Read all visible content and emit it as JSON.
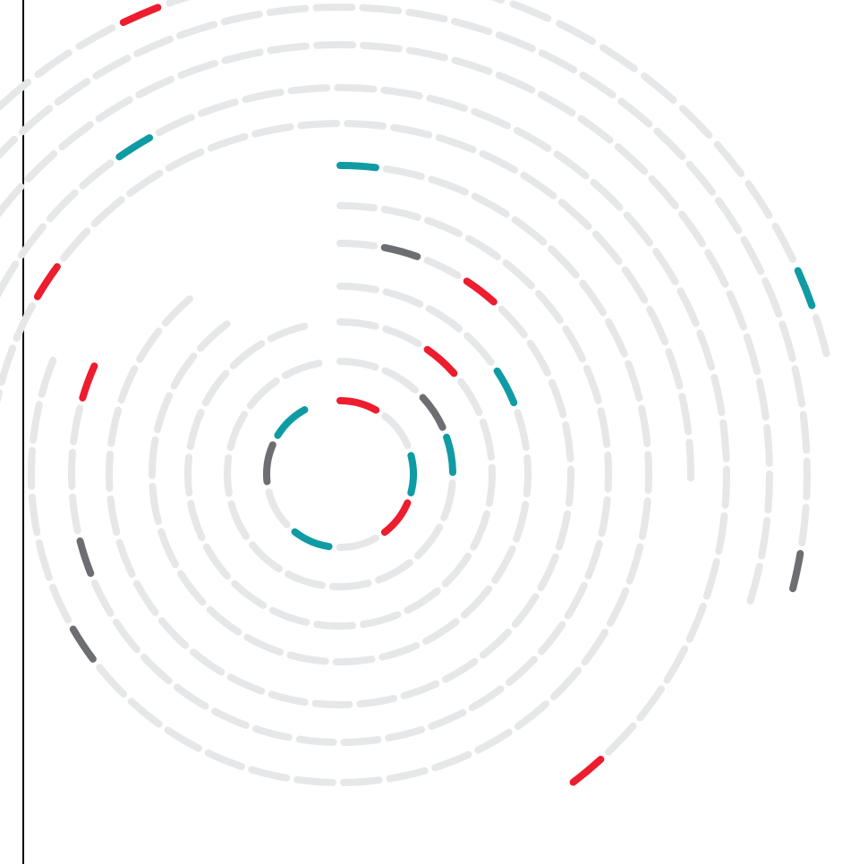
{
  "artwork": {
    "kind": "concentric dashed rings",
    "palette": {
      "background": "#ffffff",
      "rule": "#000000",
      "track": "#e6e7e8",
      "red": "#ed1c2e",
      "teal": "#0f9ba3",
      "gray": "#6d6e71"
    }
  }
}
